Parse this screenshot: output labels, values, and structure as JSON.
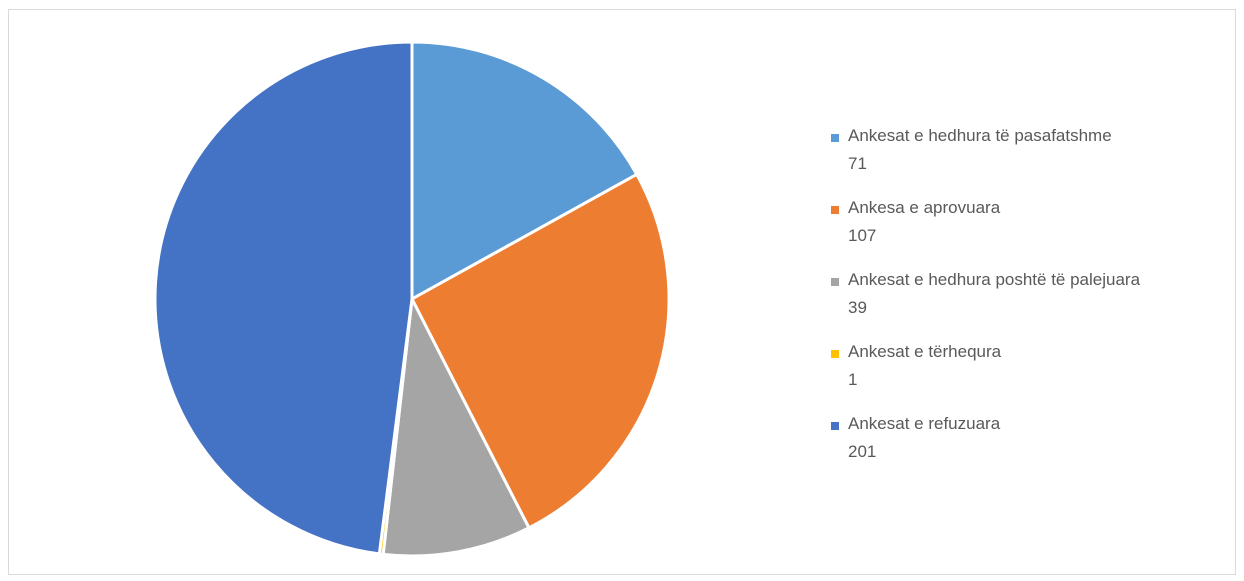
{
  "chart_data": {
    "type": "pie",
    "title": "",
    "categories": [
      "Ankesat e hedhura të pasafatshme",
      "Ankesa e aprovuara",
      "Ankesat e hedhura poshtë të palejuara",
      "Ankesat e tërhequra",
      "Ankesat e refuzuara"
    ],
    "values": [
      71,
      107,
      39,
      1,
      201
    ],
    "colors": [
      "#5B9BD5",
      "#ED7D31",
      "#A5A5A5",
      "#FFC000",
      "#4472C4"
    ],
    "legend_position": "right",
    "legend": [
      {
        "label": "Ankesat e hedhura të pasafatshme",
        "value": "71",
        "color": "#5B9BD5"
      },
      {
        "label": "Ankesa e aprovuara",
        "value": "107",
        "color": "#ED7D31"
      },
      {
        "label": "Ankesat e hedhura poshtë të palejuara",
        "value": "39",
        "color": "#A5A5A5"
      },
      {
        "label": "Ankesat e tërhequra",
        "value": "1",
        "color": "#FFC000"
      },
      {
        "label": "Ankesat e refuzuara",
        "value": "201",
        "color": "#4472C4"
      }
    ]
  }
}
